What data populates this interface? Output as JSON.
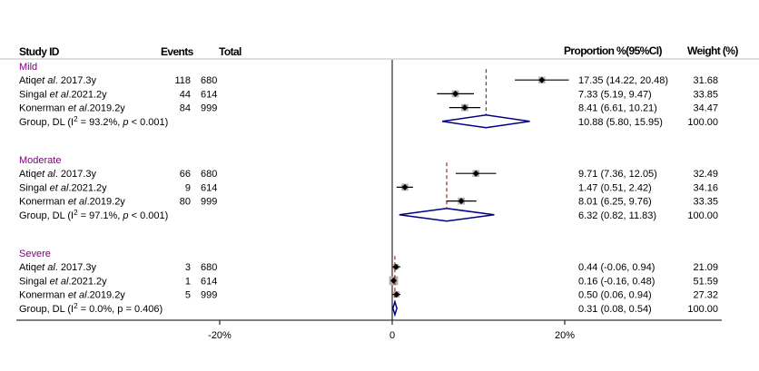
{
  "chart_data": {
    "type": "forest",
    "headers": {
      "study": "Study ID",
      "events": "Events",
      "total": "Total",
      "proportion": "Proportion %(95%CI)",
      "weight": "Weight (%)"
    },
    "xlim": [
      -43,
      38
    ],
    "xticks": [
      {
        "value": -20,
        "label": "-20%"
      },
      {
        "value": 0,
        "label": "0"
      },
      {
        "value": 20,
        "label": "20%"
      }
    ],
    "groups": [
      {
        "name": "Mild",
        "studies": [
          {
            "author": "Atiq",
            "etal": "et al",
            "suffix": ". 2017.3y",
            "events": "118",
            "total": "680",
            "estimate": 17.35,
            "lower": 14.22,
            "upper": 20.48,
            "ci_text": "17.35 (14.22, 20.48)",
            "weight": "31.68",
            "weight_value": 31.68
          },
          {
            "author": "Singal ",
            "etal": "et al",
            "suffix": ".2021.2y",
            "events": "44",
            "total": "614",
            "estimate": 7.33,
            "lower": 5.19,
            "upper": 9.47,
            "ci_text": "7.33 (5.19, 9.47)",
            "weight": "33.85",
            "weight_value": 33.85
          },
          {
            "author": "Konerman ",
            "etal": "et al",
            "suffix": ".2019.2y",
            "events": "84",
            "total": "999",
            "estimate": 8.41,
            "lower": 6.61,
            "upper": 10.21,
            "ci_text": "8.41 (6.61, 10.21)",
            "weight": "34.47",
            "weight_value": 34.47
          }
        ],
        "pooled": {
          "label_pre": "Group, DL (I",
          "sup": "2",
          "label_post": " = 93.2%, ",
          "p_label": "p",
          "p_post": " < 0.001)",
          "estimate": 10.88,
          "lower": 5.8,
          "upper": 15.95,
          "ci_text": "10.88 (5.80, 15.95)",
          "weight": "100.00"
        }
      },
      {
        "name": "Moderate",
        "studies": [
          {
            "author": "Atiq",
            "etal": "et al",
            "suffix": ". 2017.3y",
            "events": "66",
            "total": "680",
            "estimate": 9.71,
            "lower": 7.36,
            "upper": 12.05,
            "ci_text": "9.71 (7.36, 12.05)",
            "weight": "32.49",
            "weight_value": 32.49
          },
          {
            "author": "Singal ",
            "etal": "et al",
            "suffix": ".2021.2y",
            "events": "9",
            "total": "614",
            "estimate": 1.47,
            "lower": 0.51,
            "upper": 2.42,
            "ci_text": "1.47 (0.51, 2.42)",
            "weight": "34.16",
            "weight_value": 34.16
          },
          {
            "author": "Konerman ",
            "etal": "et al",
            "suffix": ".2019.2y",
            "events": "80",
            "total": "999",
            "estimate": 8.01,
            "lower": 6.25,
            "upper": 9.76,
            "ci_text": "8.01 (6.25, 9.76)",
            "weight": "33.35",
            "weight_value": 33.35
          }
        ],
        "pooled": {
          "label_pre": "Group, DL (I",
          "sup": "2",
          "label_post": " = 97.1%, ",
          "p_label": "p",
          "p_post": " < 0.001)",
          "estimate": 6.32,
          "lower": 0.82,
          "upper": 11.83,
          "ci_text": "6.32 (0.82, 11.83)",
          "weight": "100.00"
        }
      },
      {
        "name": "Severe",
        "studies": [
          {
            "author": "Atiq",
            "etal": "et al",
            "suffix": ". 2017.3y",
            "events": "3",
            "total": "680",
            "estimate": 0.44,
            "lower": -0.06,
            "upper": 0.94,
            "ci_text": "0.44 (-0.06, 0.94)",
            "weight": "21.09",
            "weight_value": 21.09
          },
          {
            "author": "Singal ",
            "etal": "et al",
            "suffix": ".2021.2y",
            "events": "1",
            "total": "614",
            "estimate": 0.16,
            "lower": -0.16,
            "upper": 0.48,
            "ci_text": "0.16 (-0.16, 0.48)",
            "weight": "51.59",
            "weight_value": 51.59
          },
          {
            "author": "Konerman ",
            "etal": "et al",
            "suffix": ".2019.2y",
            "events": "5",
            "total": "999",
            "estimate": 0.5,
            "lower": 0.06,
            "upper": 0.94,
            "ci_text": "0.50 (0.06, 0.94)",
            "weight": "27.32",
            "weight_value": 27.32
          }
        ],
        "pooled": {
          "label_pre": "Group, DL (I",
          "sup": "2",
          "label_post": " = 0.0%, p = 0.406)",
          "p_label": "",
          "p_post": "",
          "estimate": 0.31,
          "lower": 0.08,
          "upper": 0.54,
          "ci_text": "0.31 (0.08, 0.54)",
          "weight": "100.00"
        }
      }
    ],
    "colors": {
      "subgroup_label": "#800080",
      "diamond": "#000080",
      "pooled_line": "#8b0000",
      "weight_box": "#b0b0b0",
      "point": "#000000"
    }
  }
}
